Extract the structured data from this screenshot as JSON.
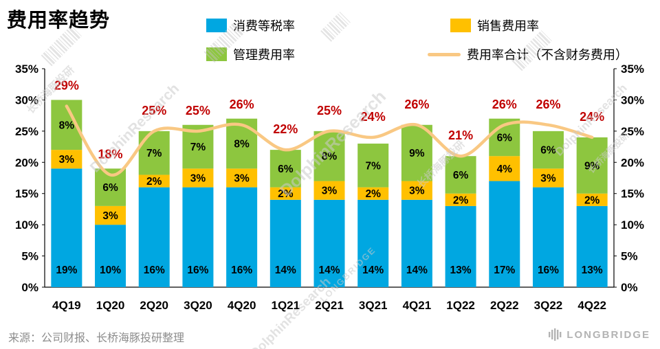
{
  "title": "费用率趋势",
  "legend": [
    {
      "label": "消费等税率",
      "color": "#00A7E1"
    },
    {
      "label": "销售费用率",
      "color": "#FFC000"
    },
    {
      "label": "管理费用率",
      "color": "#8DC63F"
    },
    {
      "label": "费用率合计（不含财务费用）",
      "color": "#F9C883"
    }
  ],
  "chart_data": {
    "type": "bar",
    "subtype": "stacked-bars-with-total-line",
    "title": "费用率趋势",
    "categories": [
      "4Q19",
      "1Q20",
      "2Q20",
      "3Q20",
      "4Q20",
      "1Q21",
      "2Q21",
      "3Q21",
      "4Q21",
      "1Q22",
      "2Q22",
      "3Q22",
      "4Q22"
    ],
    "series": [
      {
        "name": "消费等税率",
        "color": "#00A7E1",
        "values": [
          19,
          10,
          16,
          16,
          16,
          14,
          14,
          14,
          14,
          13,
          17,
          16,
          13
        ]
      },
      {
        "name": "销售费用率",
        "color": "#FFC000",
        "values": [
          3,
          3,
          2,
          3,
          3,
          2,
          3,
          2,
          3,
          2,
          4,
          3,
          2
        ]
      },
      {
        "name": "管理费用率",
        "color": "#8DC63F",
        "values": [
          8,
          6,
          7,
          7,
          8,
          6,
          8,
          7,
          9,
          6,
          6,
          6,
          9
        ]
      }
    ],
    "line": {
      "name": "费用率合计（不含财务费用）",
      "color": "#F9C883",
      "label_color": "#C00000",
      "values": [
        29,
        18,
        25,
        25,
        26,
        22,
        25,
        24,
        26,
        21,
        26,
        26,
        24
      ]
    },
    "unit": "%",
    "ylim": [
      0,
      35
    ],
    "ytick_step": 5,
    "yticks": [
      "0%",
      "5%",
      "10%",
      "15%",
      "20%",
      "25%",
      "30%",
      "35%"
    ],
    "grid": false,
    "legend_position": "top",
    "secondary_axis": "right, same scale 0-35%"
  },
  "footer": {
    "source": "来源：公司财报、长桥海豚投研整理"
  },
  "logo": {
    "text": "LONGBRIDGE"
  },
  "watermarks": {
    "dolphin": "DolphinResearch",
    "cn": "长桥海豚投研",
    "lb": "LONGBRIDGE"
  }
}
